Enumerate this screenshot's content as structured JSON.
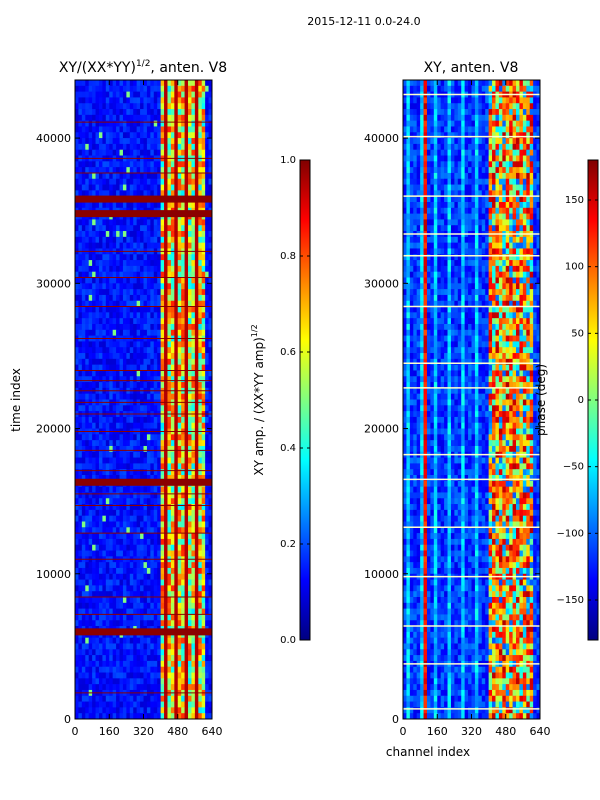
{
  "suptitle": "2015-12-11 0.0-24.0",
  "colors": {
    "jet": [
      "#000080",
      "#0000ff",
      "#0080ff",
      "#00ffff",
      "#80ff80",
      "#ffff00",
      "#ff8000",
      "#ff0000",
      "#800000"
    ],
    "frame": "#000000",
    "background": "#ffffff",
    "flag_line_left": "#8b0000",
    "flag_line_right": "#ffffcc"
  },
  "chart_data": [
    {
      "type": "heatmap",
      "title": "XY/(XX*YY)",
      "title_exponent": "1/2",
      "title_suffix": ", anten. V8",
      "xlabel": "",
      "ylabel": "time index",
      "x_range": [
        0,
        640
      ],
      "y_range": [
        0,
        44000
      ],
      "x_ticks": [
        0,
        160,
        320,
        480,
        640
      ],
      "x_tick_labels": [
        "0",
        "160",
        "320",
        "480",
        "640"
      ],
      "y_ticks": [
        0,
        10000,
        20000,
        30000,
        40000
      ],
      "y_tick_labels": [
        "0",
        "10000",
        "20000",
        "30000",
        "40000"
      ],
      "colorbar": {
        "label_base": "XY amp. / (XX*YY amp)",
        "label_exponent": "1/2",
        "range": [
          0.0,
          1.0
        ],
        "ticks": [
          0.0,
          0.2,
          0.4,
          0.6,
          0.8,
          1.0
        ],
        "tick_labels": [
          "0.0",
          "0.2",
          "0.4",
          "0.6",
          "0.8",
          "1.0"
        ]
      },
      "description": "Mostly low amplitude (~0.1) across channels; bright band (~0.6-0.9) over channels ~400-600; dark-red horizontal flag lines at several time indices.",
      "bright_band_channels": [
        405,
        610
      ],
      "flag_rows": [
        6000,
        16300,
        34800,
        35800
      ],
      "thin_flag_rows": [
        1800,
        7200,
        8400,
        11000,
        12800,
        14700,
        15500,
        17100,
        18500,
        19800,
        21000,
        21800,
        22600,
        23300,
        24000,
        26200,
        28400,
        30400,
        32200,
        37600,
        38600,
        41100
      ]
    },
    {
      "type": "heatmap",
      "title": "XY, anten. V8",
      "xlabel": "channel index",
      "ylabel": "",
      "x_range": [
        0,
        640
      ],
      "y_range": [
        0,
        44000
      ],
      "x_ticks": [
        0,
        160,
        320,
        480,
        640
      ],
      "x_tick_labels": [
        "0",
        "160",
        "320",
        "480",
        "640"
      ],
      "y_ticks": [
        0,
        10000,
        20000,
        30000,
        40000
      ],
      "y_tick_labels": [
        "0",
        "10000",
        "20000",
        "30000",
        "40000"
      ],
      "colorbar": {
        "label": "phase (deg)",
        "range": [
          -180,
          180
        ],
        "ticks": [
          -150,
          -100,
          -50,
          0,
          50,
          100,
          150
        ],
        "tick_labels": [
          "−150",
          "−100",
          "−50",
          "0",
          "50",
          "100",
          "150"
        ]
      },
      "description": "Phase mostly around -150 deg (blue) with streaks; red vertical stripe near channels ~90-120; mixed red/yellow patches over channels ~400-600; light horizontal flag lines.",
      "red_stripe_channels": [
        90,
        120
      ],
      "mixed_band_channels": [
        400,
        610
      ],
      "flag_rows": [
        700,
        3800,
        6400,
        9800,
        13200,
        16500,
        18200,
        22800,
        24500,
        28400,
        31900,
        33400,
        36000,
        40100,
        43000
      ]
    }
  ]
}
